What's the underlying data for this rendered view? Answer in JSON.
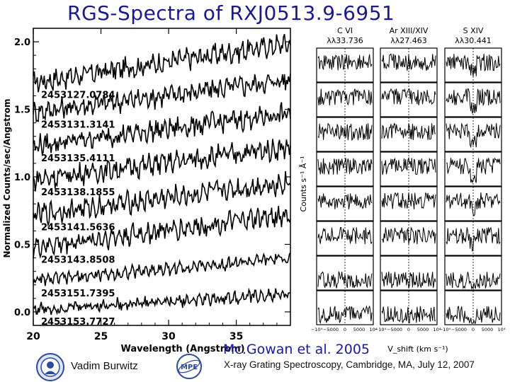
{
  "slide": {
    "title": "RGS-Spectra of RXJ0513.9-6951",
    "credit": "Mc.Gowan et al. 2005",
    "author": "Vadim Burwitz",
    "conference": "X-ray Grating Spectroscopy, Cambridge, MA, July 12, 2007"
  },
  "chart_data": [
    {
      "type": "line",
      "xlabel": "Wavelength (Angstrom)",
      "ylabel": "Normalized Counts/sec/Angstrom",
      "xlim": [
        20,
        39
      ],
      "ylim": [
        -0.1,
        2.1
      ],
      "xticks": [
        "20",
        "25",
        "30",
        "35"
      ],
      "xtick_values": [
        20,
        25,
        30,
        35
      ],
      "yticks": [
        "0.0",
        "0.5",
        "1.0",
        "1.5",
        "2.0"
      ],
      "ytick_values": [
        0.0,
        0.5,
        1.0,
        1.5,
        2.0
      ],
      "series": [
        {
          "name": "2453127.0784",
          "start": 1.7,
          "end": 1.99
        },
        {
          "name": "2453131.3141",
          "start": 1.48,
          "end": 1.72
        },
        {
          "name": "2453135.4111",
          "start": 1.23,
          "end": 1.47
        },
        {
          "name": "2453138.1855",
          "start": 0.98,
          "end": 1.22
        },
        {
          "name": "2453141.5636",
          "start": 0.72,
          "end": 0.96
        },
        {
          "name": "2453143.8508",
          "start": 0.48,
          "end": 0.72
        },
        {
          "name": "2453151.7395",
          "start": 0.23,
          "end": 0.4
        },
        {
          "name": "2453153.7727",
          "start": 0.02,
          "end": 0.13
        }
      ]
    },
    {
      "type": "line",
      "ylabel": "Counts s⁻¹ Å⁻¹",
      "xlabel": "V_shift (km s⁻¹)",
      "xticks": [
        "−10⁴",
        "−5000",
        "0",
        "5000",
        "10⁴"
      ],
      "xlim": [
        -10000,
        10000
      ],
      "columns": [
        {
          "ion": "C VI",
          "line": "λλ33.736"
        },
        {
          "ion": "Ar XIII/XIV",
          "line": "λλ27.463"
        },
        {
          "ion": "S XIV",
          "line": "λλ30.441"
        }
      ],
      "rows": 8
    }
  ]
}
